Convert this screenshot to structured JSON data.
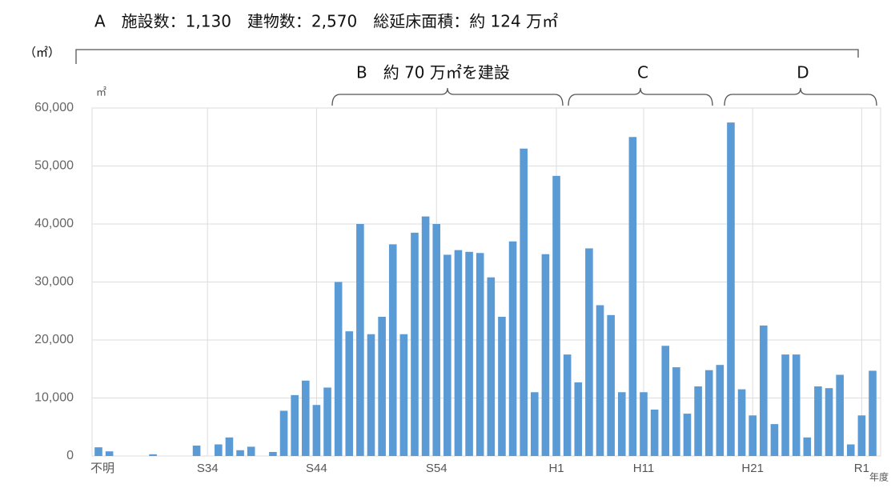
{
  "chart_data": {
    "type": "bar",
    "annotations": {
      "a": "A　施設数：1,130　建物数：2,570　総延床面積：約 124 万㎡",
      "a_unit": "（㎡）",
      "b": "B　約 70 万㎡を建設",
      "c": "C",
      "d": "D"
    },
    "y_unit": "㎡",
    "x_unit": "年度",
    "color": "#5b9bd5",
    "grid": true,
    "categories": [
      "不明",
      null,
      null,
      null,
      null,
      null,
      null,
      null,
      null,
      null,
      "S34",
      null,
      null,
      null,
      null,
      null,
      null,
      null,
      null,
      null,
      "S44",
      null,
      null,
      null,
      null,
      null,
      null,
      null,
      null,
      null,
      null,
      "S54",
      null,
      null,
      null,
      null,
      null,
      null,
      null,
      null,
      null,
      null,
      "H1",
      null,
      null,
      null,
      null,
      null,
      null,
      null,
      "H11",
      null,
      null,
      null,
      null,
      null,
      null,
      null,
      null,
      null,
      "H21",
      null,
      null,
      null,
      null,
      null,
      null,
      null,
      null,
      null,
      "R1",
      null
    ],
    "values": [
      1500,
      800,
      0,
      0,
      0,
      300,
      0,
      0,
      0,
      1800,
      0,
      2000,
      3200,
      1000,
      1600,
      0,
      700,
      7800,
      10500,
      13000,
      8800,
      11800,
      30000,
      21500,
      40000,
      21000,
      24000,
      36500,
      21000,
      38500,
      41300,
      40000,
      34700,
      35500,
      35200,
      35000,
      30800,
      24000,
      37000,
      53000,
      11000,
      34800,
      48300,
      17500,
      12700,
      35800,
      26000,
      24300,
      11000,
      55000,
      11000,
      8000,
      19000,
      15300,
      7300,
      12000,
      14800,
      15700,
      57500,
      11500,
      7000,
      22500,
      5500,
      17500,
      17500,
      3200,
      12000,
      11700,
      14000,
      2000,
      7000,
      14700
    ],
    "ylim": [
      0,
      60000
    ],
    "yticks": [
      0,
      {
        "value": 10000,
        "label": "10,000"
      },
      {
        "value": 20000,
        "label": "20,000"
      },
      {
        "value": 30000,
        "label": "30,000"
      },
      {
        "value": 40000,
        "label": "40,000"
      },
      {
        "value": 50000,
        "label": "50,000"
      },
      {
        "value": 60000,
        "label": "60,000"
      }
    ]
  }
}
